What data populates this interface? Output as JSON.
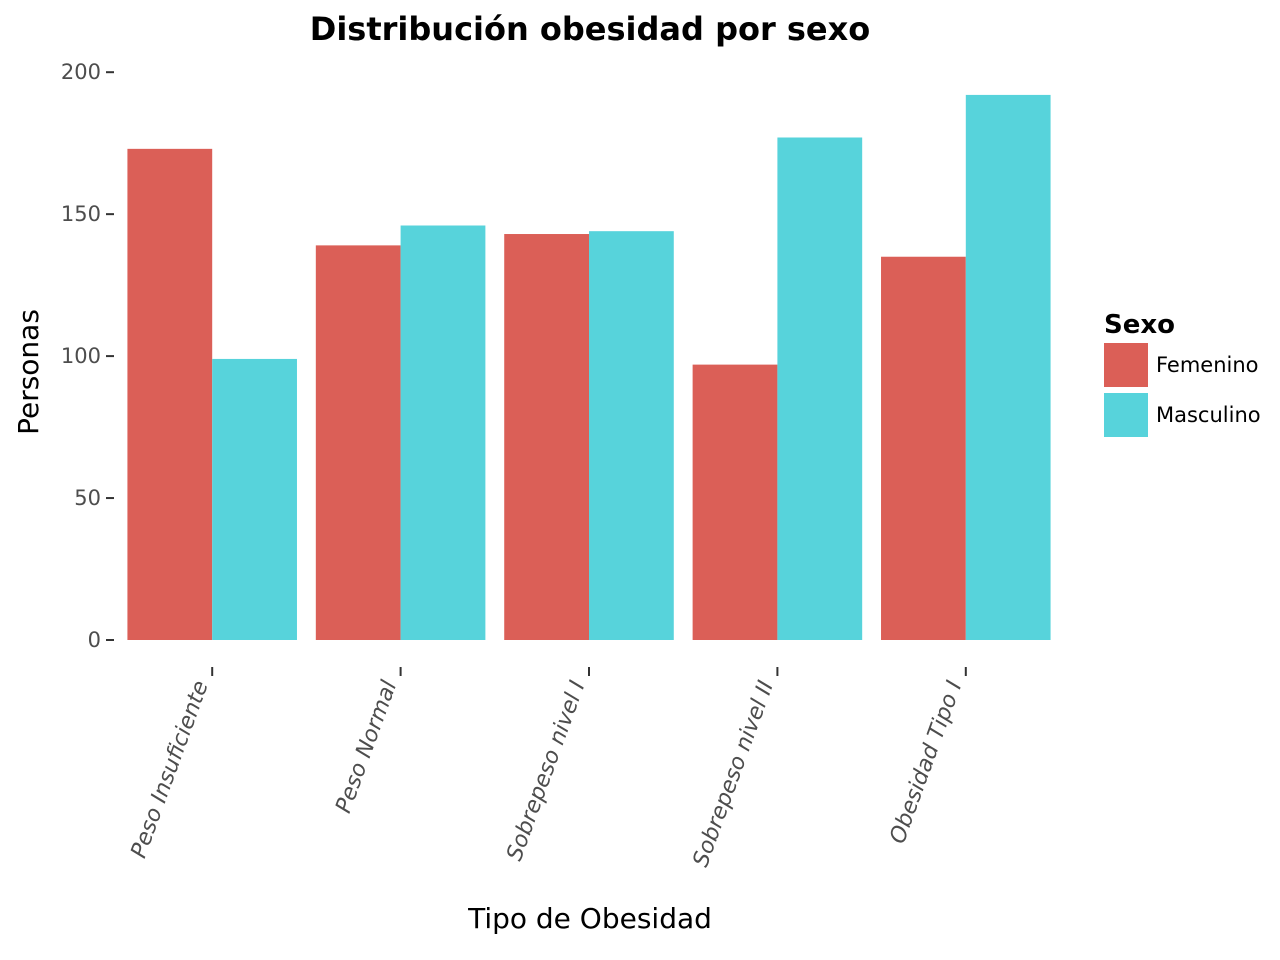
{
  "chart_data": {
    "type": "bar",
    "title": "Distribución obesidad por sexo",
    "xlabel": "Tipo de Obesidad",
    "ylabel": "Personas",
    "categories": [
      "Peso Insuficiente",
      "Peso Normal",
      "Sobrepeso nivel I",
      "Sobrepeso nivel II",
      "Obesidad Tipo I"
    ],
    "series": [
      {
        "name": "Femenino",
        "color": "#db5f57",
        "values": [
          173,
          139,
          143,
          97,
          135
        ]
      },
      {
        "name": "Masculino",
        "color": "#57d3db",
        "values": [
          99,
          146,
          144,
          177,
          192
        ]
      }
    ],
    "ylim": [
      0,
      200
    ],
    "yticks": [
      0,
      50,
      100,
      150,
      200
    ],
    "grid": false,
    "legend": {
      "title": "Sexo",
      "placement": "right"
    }
  }
}
